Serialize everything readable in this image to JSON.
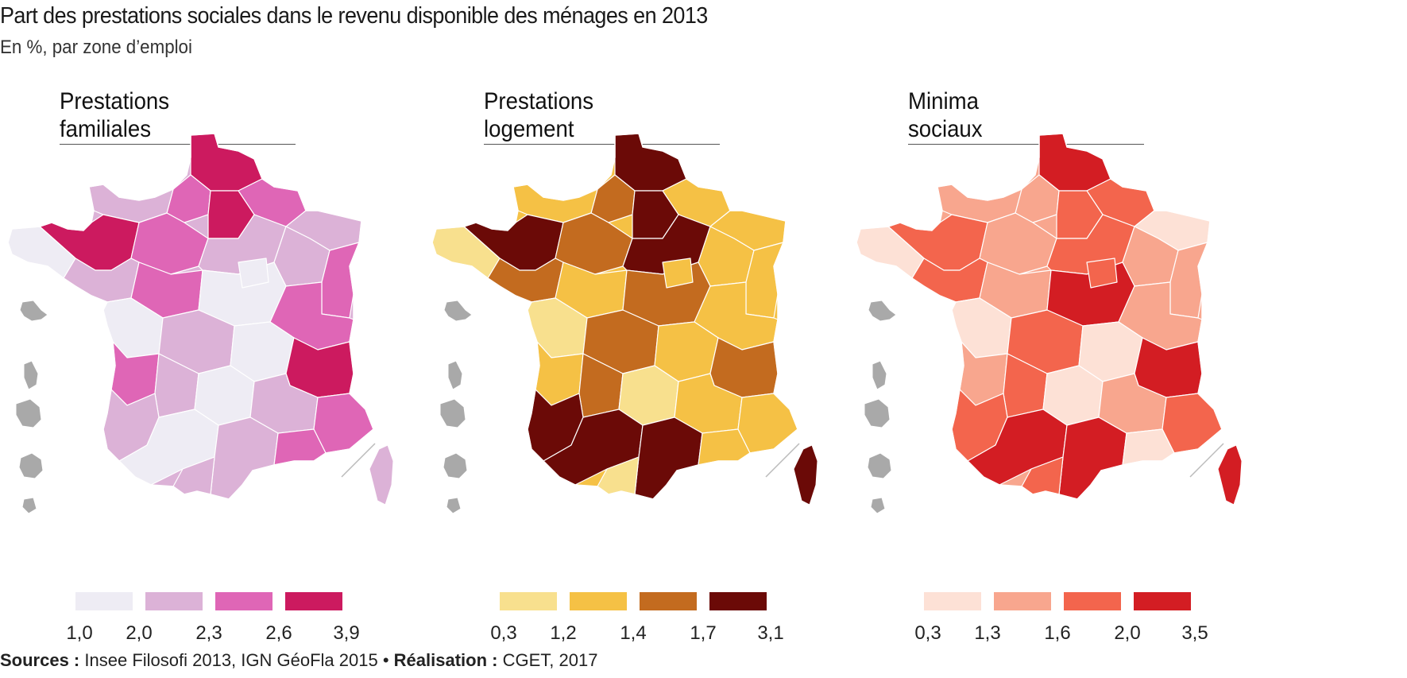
{
  "header": {
    "title": "Part des prestations sociales dans le revenu disponible des ménages en 2013",
    "subtitle": "En %, par zone d’emploi"
  },
  "maps": [
    {
      "id": "familiales",
      "title_line1": "Prestations",
      "title_line2": "familiales",
      "legend_colors": [
        "#eeecf4",
        "#dcb2d7",
        "#df66b6",
        "#cc1a5f"
      ],
      "legend_ticks": [
        "1,0",
        "2,0",
        "2,3",
        "2,6",
        "3,9"
      ],
      "region_classes": [
        3,
        2,
        2,
        3,
        1,
        1,
        3,
        0,
        2,
        1,
        1,
        2,
        1,
        2,
        0,
        2,
        0,
        1,
        0,
        3,
        2,
        1,
        0,
        1,
        2,
        1,
        0,
        1,
        2,
        1,
        0,
        0
      ]
    },
    {
      "id": "logement",
      "title_line1": "Prestations",
      "title_line2": "logement",
      "legend_colors": [
        "#f8e08e",
        "#f5c145",
        "#c36b1f",
        "#6b0a07"
      ],
      "legend_ticks": [
        "0,3",
        "1,2",
        "1,4",
        "1,7",
        "3,1"
      ],
      "region_classes": [
        3,
        2,
        1,
        3,
        1,
        1,
        3,
        0,
        2,
        3,
        1,
        1,
        2,
        1,
        2,
        1,
        0,
        2,
        1,
        2,
        1,
        2,
        0,
        1,
        1,
        3,
        3,
        3,
        1,
        0,
        1,
        1
      ]
    },
    {
      "id": "minima",
      "title_line1": "Minima",
      "title_line2": "sociaux",
      "legend_colors": [
        "#fde1d6",
        "#f8a68e",
        "#f3654d",
        "#d31d23"
      ],
      "legend_ticks": [
        "0,3",
        "1,3",
        "1,6",
        "2,0",
        "3,5"
      ],
      "region_classes": [
        3,
        1,
        2,
        2,
        0,
        1,
        2,
        0,
        1,
        2,
        1,
        1,
        2,
        1,
        3,
        1,
        0,
        2,
        0,
        3,
        1,
        2,
        0,
        1,
        2,
        2,
        3,
        3,
        0,
        2,
        1,
        2
      ]
    }
  ],
  "footer": {
    "sources_label": "Sources :",
    "sources_text": "Insee Filosofi 2013, IGN GéoFla 2015",
    "separator": "•",
    "realisation_label": "Réalisation :",
    "realisation_text": "CGET, 2017"
  }
}
